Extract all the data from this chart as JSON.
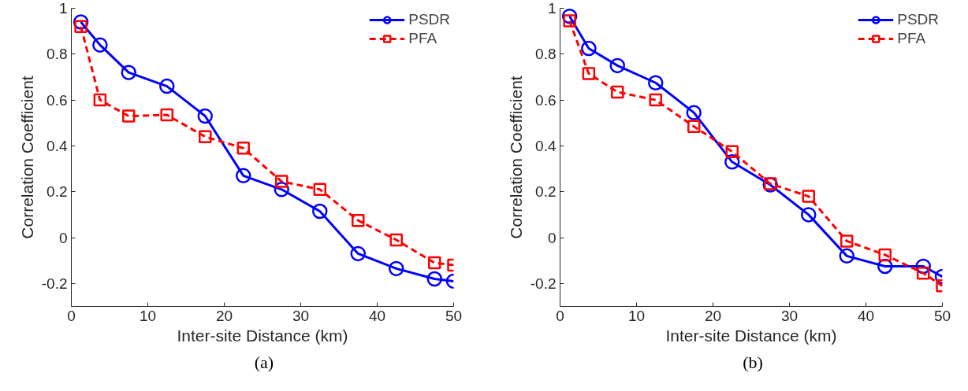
{
  "chart_data": [
    {
      "type": "line",
      "xlabel": "Inter-site Distance (km)",
      "ylabel": "Correlation Coefficient",
      "annotations": [
        "(a)"
      ],
      "x": [
        1.25,
        3.75,
        7.5,
        12.5,
        17.5,
        22.5,
        27.5,
        32.5,
        37.5,
        42.5,
        47.5,
        50
      ],
      "series": [
        {
          "name": "PSDR",
          "color": "#0000ff",
          "marker": "circle",
          "line_style": "solid",
          "values": [
            0.94,
            0.84,
            0.72,
            0.66,
            0.53,
            0.27,
            0.21,
            0.115,
            -0.07,
            -0.135,
            -0.18,
            -0.19
          ]
        },
        {
          "name": "PFA",
          "color": "#ff0000",
          "marker": "square",
          "line_style": "dashed",
          "values": [
            0.92,
            0.6,
            0.53,
            0.535,
            0.44,
            0.39,
            0.245,
            0.21,
            0.075,
            -0.01,
            -0.11,
            -0.12
          ]
        }
      ],
      "xlim": [
        0,
        50
      ],
      "xticks": [
        0,
        10,
        20,
        30,
        40,
        50
      ],
      "ylim": [
        -0.3,
        1
      ],
      "yticks": [
        -0.2,
        0,
        0.2,
        0.4,
        0.6,
        0.8,
        1
      ],
      "grid": false,
      "legend": "top right"
    },
    {
      "type": "line",
      "xlabel": "Inter-site Distance (km)",
      "ylabel": "Correlation Coefficient",
      "annotations": [
        "(b)"
      ],
      "x": [
        1.25,
        3.75,
        7.5,
        12.5,
        17.5,
        22.5,
        27.5,
        32.5,
        37.5,
        42.5,
        47.5,
        50
      ],
      "series": [
        {
          "name": "PSDR",
          "color": "#0000ff",
          "marker": "circle",
          "line_style": "solid",
          "values": [
            0.965,
            0.825,
            0.75,
            0.675,
            0.545,
            0.33,
            0.23,
            0.1,
            -0.08,
            -0.125,
            -0.125,
            -0.17
          ]
        },
        {
          "name": "PFA",
          "color": "#ff0000",
          "marker": "square",
          "line_style": "dashed",
          "values": [
            0.945,
            0.715,
            0.635,
            0.6,
            0.485,
            0.375,
            0.235,
            0.18,
            -0.015,
            -0.075,
            -0.155,
            -0.21
          ]
        }
      ],
      "xlim": [
        0,
        50
      ],
      "xticks": [
        0,
        10,
        20,
        30,
        40,
        50
      ],
      "ylim": [
        -0.3,
        1
      ],
      "yticks": [
        -0.2,
        0,
        0.2,
        0.4,
        0.6,
        0.8,
        1
      ],
      "grid": false,
      "legend": "top right"
    }
  ]
}
